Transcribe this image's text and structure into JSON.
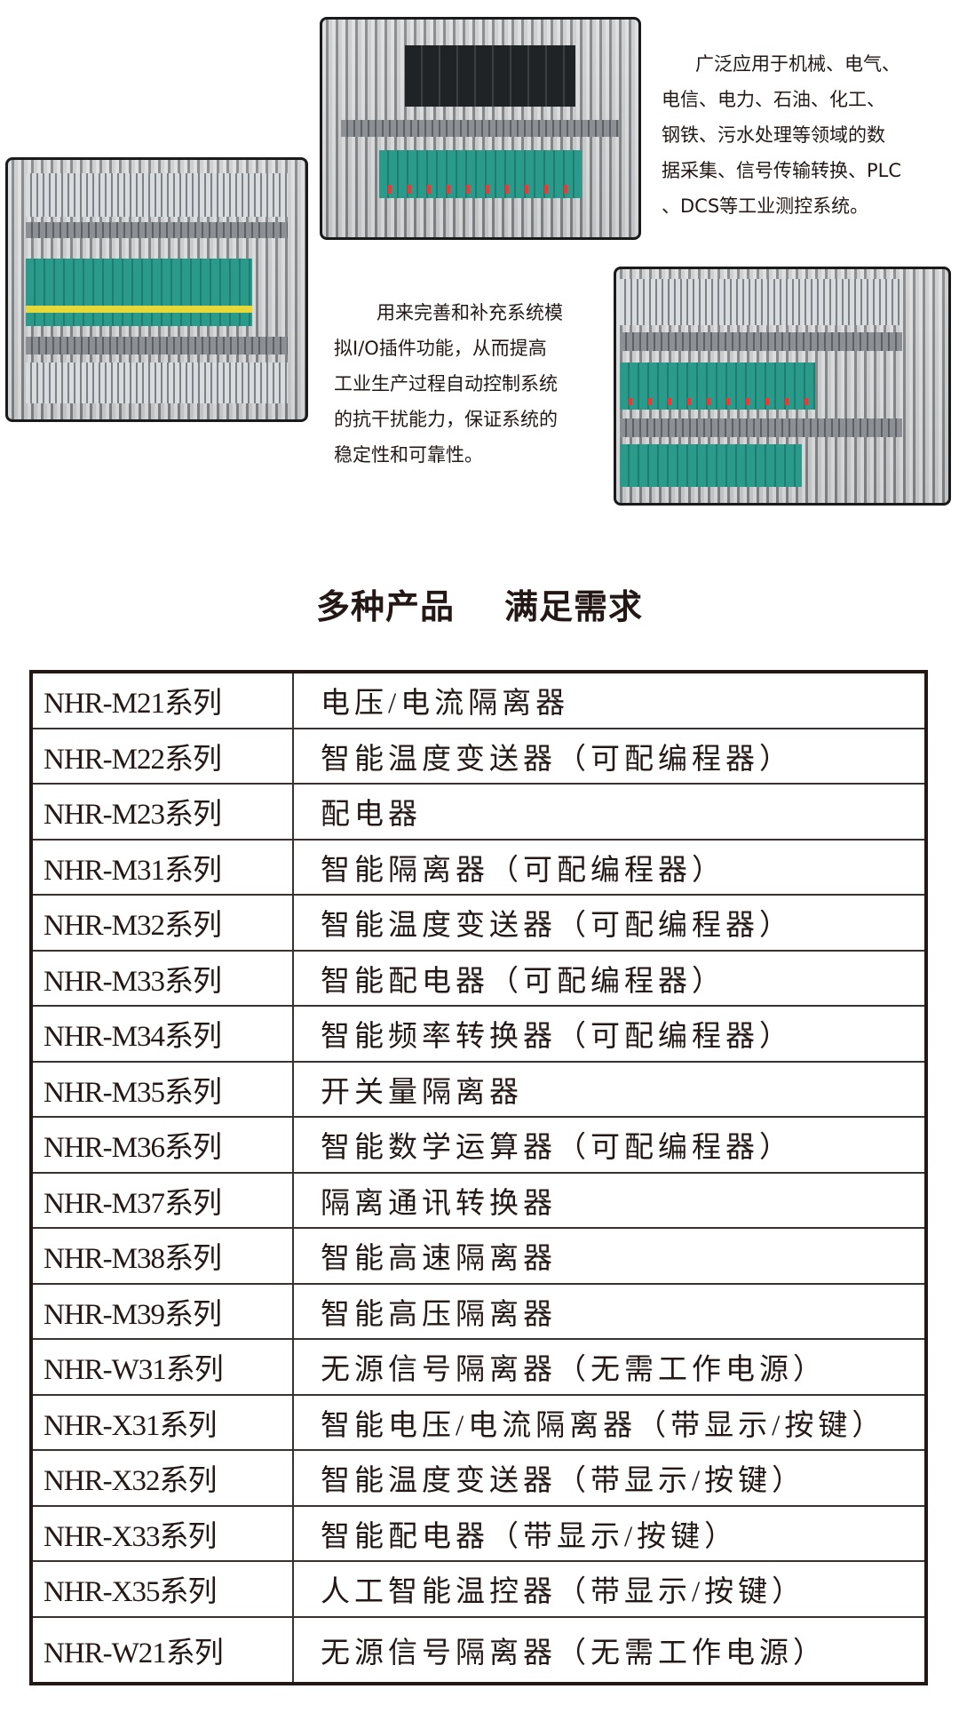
{
  "intro": {
    "paragraph1": [
      "广泛应用于机械、电气、",
      "电信、电力、石油、化工、",
      "钢铁、污水处理等领域的数",
      "据采集、信号传输转换、PLC",
      "、DCS等工业测控系统。"
    ],
    "paragraph2": [
      "用来完善和补充系统模",
      "拟I/O插件功能，从而提高",
      "工业生产过程自动控制系统",
      "的抗干扰能力，保证系统的",
      "稳定性和可靠性。"
    ]
  },
  "heading": {
    "part1": "多种产品",
    "part2": "满足需求"
  },
  "products": [
    {
      "model": "NHR-M21系列",
      "desc": "电压/电流隔离器"
    },
    {
      "model": "NHR-M22系列",
      "desc": "智能温度变送器（可配编程器）"
    },
    {
      "model": "NHR-M23系列",
      "desc": "配电器"
    },
    {
      "model": "NHR-M31系列",
      "desc": "智能隔离器（可配编程器）"
    },
    {
      "model": "NHR-M32系列",
      "desc": "智能温度变送器（可配编程器）"
    },
    {
      "model": "NHR-M33系列",
      "desc": "智能配电器（可配编程器）"
    },
    {
      "model": "NHR-M34系列",
      "desc": "智能频率转换器（可配编程器）"
    },
    {
      "model": "NHR-M35系列",
      "desc": "开关量隔离器"
    },
    {
      "model": "NHR-M36系列",
      "desc": "智能数学运算器（可配编程器）"
    },
    {
      "model": "NHR-M37系列",
      "desc": "隔离通讯转换器"
    },
    {
      "model": "NHR-M38系列",
      "desc": "智能高速隔离器"
    },
    {
      "model": "NHR-M39系列",
      "desc": "智能高压隔离器"
    },
    {
      "model": "NHR-W31系列",
      "desc": "无源信号隔离器（无需工作电源）"
    },
    {
      "model": "NHR-X31系列",
      "desc": "智能电压/电流隔离器（带显示/按键）"
    },
    {
      "model": "NHR-X32系列",
      "desc": "智能温度变送器（带显示/按键）"
    },
    {
      "model": "NHR-X33系列",
      "desc": "智能配电器（带显示/按键）"
    },
    {
      "model": "NHR-X35系列",
      "desc": "人工智能温控器（带显示/按键）"
    },
    {
      "model": "NHR-W21系列",
      "desc": "无源信号隔离器（无需工作电源）"
    }
  ]
}
